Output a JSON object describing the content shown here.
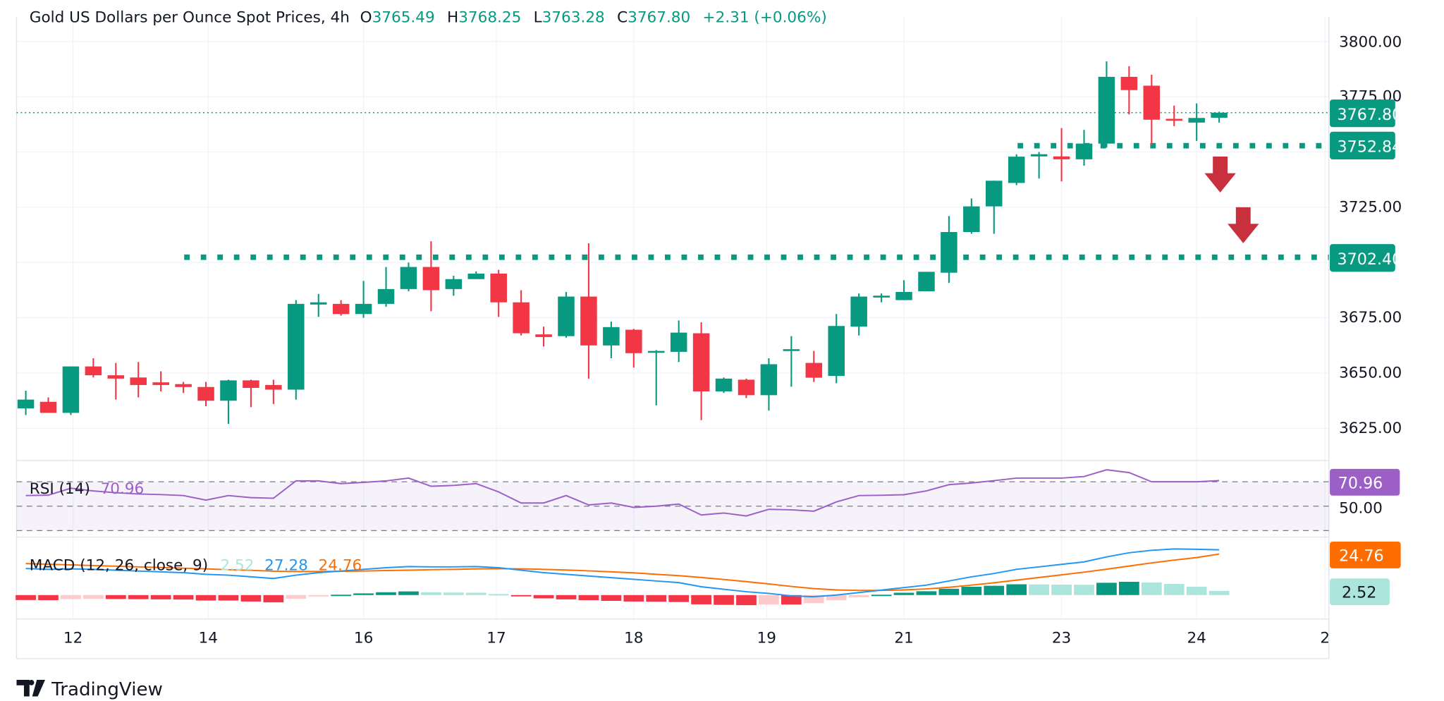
{
  "header": {
    "title": "Gold US Dollars per Ounce Spot Prices, 4h",
    "o_label": "O",
    "o_value": "3765.49",
    "h_label": "H",
    "h_value": "3768.25",
    "l_label": "L",
    "l_value": "3763.28",
    "c_label": "C",
    "c_value": "3767.80",
    "change": "+2.31 (+0.06%)"
  },
  "price_axis": {
    "ticks": [
      "3800.00",
      "3775.00",
      "3725.00",
      "3675.00",
      "3650.00",
      "3625.00"
    ],
    "current_price": "3767.80",
    "level_1": "3752.84",
    "level_2": "3702.40"
  },
  "time_axis": {
    "ticks": [
      "12",
      "14",
      "16",
      "17",
      "18",
      "19",
      "21",
      "23",
      "24",
      "2"
    ]
  },
  "rsi": {
    "label": "RSI (14)",
    "value": "70.96",
    "mid_label": "50.00"
  },
  "macd": {
    "label": "MACD (12, 26, close, 9)",
    "hist_value": "2.52",
    "macd_value": "27.28",
    "signal_value": "24.76"
  },
  "branding": {
    "logo_text": "TradingView"
  },
  "colors": {
    "up": "#089981",
    "down": "#F23645",
    "rsi": "#9C5FC8",
    "macd": "#2196F3",
    "signal": "#FF6D00",
    "arrow": "#C9303D",
    "hist_up_light": "#ACE5DC",
    "hist_down_light": "#FCCBCD"
  },
  "chart_data": {
    "type": "candlestick",
    "title": "Gold US Dollars per Ounce Spot Prices, 4h",
    "ylim": [
      3615,
      3800
    ],
    "grid": true,
    "levels": [
      3752.84,
      3702.4
    ],
    "annotations": [
      "down-arrow",
      "down-arrow"
    ],
    "candles": [
      [
        3634,
        3642,
        3631,
        3638
      ],
      [
        3637,
        3639,
        3632,
        3632
      ],
      [
        3632,
        3653,
        3631,
        3653
      ],
      [
        3653,
        3656.7,
        3648,
        3649
      ],
      [
        3649,
        3654.6,
        3638,
        3647.5
      ],
      [
        3648,
        3655,
        3639,
        3644.6
      ],
      [
        3645.8,
        3650.8,
        3641.7,
        3644.6
      ],
      [
        3645,
        3646,
        3641,
        3643.7
      ],
      [
        3643.7,
        3646,
        3635,
        3637.5
      ],
      [
        3637.5,
        3647,
        3627,
        3646.7
      ],
      [
        3646.7,
        3647,
        3634.6,
        3643.3
      ],
      [
        3644.6,
        3647,
        3636,
        3642.5
      ],
      [
        3642.5,
        3683,
        3638,
        3681.3
      ],
      [
        3681,
        3685.8,
        3675.4,
        3682
      ],
      [
        3681.3,
        3683,
        3676,
        3676.7
      ],
      [
        3676.7,
        3691.7,
        3675,
        3681.3
      ],
      [
        3681.3,
        3698,
        3680,
        3688
      ],
      [
        3688,
        3700,
        3687,
        3698
      ],
      [
        3698,
        3709.6,
        3678,
        3687.5
      ],
      [
        3688,
        3694,
        3685,
        3692.5
      ],
      [
        3692.5,
        3696,
        3693,
        3695
      ],
      [
        3695,
        3696.7,
        3675.4,
        3682
      ],
      [
        3682,
        3687.5,
        3667,
        3668
      ],
      [
        3667.5,
        3671,
        3662,
        3666.3
      ],
      [
        3666.7,
        3686.7,
        3666,
        3684.6
      ],
      [
        3684.6,
        3708.7,
        3647.5,
        3662.5
      ],
      [
        3662.5,
        3673.3,
        3656.7,
        3670.8
      ],
      [
        3669.6,
        3670,
        3652.5,
        3659
      ],
      [
        3659.6,
        3660.4,
        3635.4,
        3660
      ],
      [
        3659.6,
        3673.8,
        3655,
        3668.3
      ],
      [
        3668,
        3673,
        3628.7,
        3641.7
      ],
      [
        3641.7,
        3648,
        3641,
        3647.5
      ],
      [
        3647,
        3647.5,
        3638.7,
        3640
      ],
      [
        3640,
        3656.7,
        3633,
        3654
      ],
      [
        3660.4,
        3666.7,
        3643.8,
        3660.8
      ],
      [
        3654.6,
        3660,
        3646,
        3647.9
      ],
      [
        3648.7,
        3676.7,
        3645.4,
        3671.3
      ],
      [
        3671,
        3686,
        3667,
        3684.6
      ],
      [
        3684.6,
        3686,
        3682,
        3685
      ],
      [
        3683,
        3692,
        3683,
        3686.7
      ],
      [
        3687,
        3695.8,
        3687,
        3695.8
      ],
      [
        3695.4,
        3721,
        3690.8,
        3713.8
      ],
      [
        3713.8,
        3729,
        3713,
        3725.4
      ],
      [
        3725.4,
        3737,
        3713,
        3737
      ],
      [
        3736,
        3749,
        3735,
        3747.9
      ],
      [
        3748,
        3750,
        3738,
        3749
      ],
      [
        3748,
        3760.8,
        3736.7,
        3746.7
      ],
      [
        3746.7,
        3760,
        3743.8,
        3753.8
      ],
      [
        3753.8,
        3791,
        3752,
        3784
      ],
      [
        3784,
        3788.8,
        3767,
        3778
      ],
      [
        3780,
        3785,
        3753,
        3764.6
      ],
      [
        3765,
        3771,
        3761.7,
        3764.6
      ],
      [
        3763.3,
        3772,
        3755,
        3765.4
      ],
      [
        3765.49,
        3768.25,
        3763.28,
        3767.8
      ]
    ],
    "rsi_values": [
      58.7,
      59,
      64.7,
      62.5,
      61,
      60,
      59.5,
      58.7,
      55,
      58.7,
      57,
      56.5,
      70.7,
      70.7,
      68.5,
      69.5,
      70.7,
      73,
      66.3,
      67,
      68.5,
      61.7,
      52.6,
      52.6,
      58.7,
      51,
      52.6,
      49,
      50,
      51.7,
      42.8,
      44.4,
      42,
      47.4,
      47,
      45.9,
      53.5,
      58.7,
      58.9,
      59.4,
      62.5,
      67.6,
      69,
      70.9,
      73,
      73,
      73,
      74.3,
      79.8,
      77.5,
      70,
      70,
      70,
      70.96
    ],
    "rsi_bands": [
      70,
      50,
      30
    ],
    "macd_values": [
      16,
      15.5,
      15.8,
      15.5,
      15,
      14.5,
      14,
      13.5,
      12.5,
      12,
      11,
      10,
      12,
      13.5,
      14.5,
      15.5,
      16.5,
      17.2,
      17,
      17,
      17.2,
      16.5,
      15,
      13.5,
      12.5,
      11.5,
      10.5,
      9.5,
      8.5,
      7.5,
      5,
      3.5,
      2,
      1,
      -0.5,
      -1,
      0,
      1.5,
      3,
      4.5,
      6,
      8.5,
      11,
      13,
      15.5,
      17,
      18.5,
      20,
      23,
      25.5,
      27,
      27.8,
      27.6,
      27.28
    ],
    "signal_values": [
      19,
      18.6,
      18.2,
      17.8,
      17.4,
      17,
      16.6,
      16.2,
      15.8,
      15.3,
      14.9,
      14.4,
      14.2,
      14.2,
      14.3,
      14.5,
      14.8,
      15,
      15.3,
      15.5,
      15.8,
      15.9,
      15.8,
      15.5,
      15.1,
      14.6,
      14,
      13.4,
      12.5,
      11.7,
      10.6,
      9.4,
      8.1,
      6.7,
      5.2,
      3.9,
      3.1,
      2.8,
      2.8,
      3.1,
      3.7,
      4.7,
      6,
      7.4,
      9,
      10.6,
      12.2,
      13.8,
      15.6,
      17.5,
      19.4,
      21.1,
      22.6,
      24.76
    ],
    "histogram_values": [
      -3,
      -3.1,
      -2.4,
      -2.3,
      -2.4,
      -2.5,
      -2.6,
      -2.7,
      -3.3,
      -3.3,
      -3.9,
      -4.4,
      -2.2,
      -0.7,
      0.2,
      1,
      1.7,
      2.2,
      1.7,
      1.5,
      1.4,
      0.6,
      -0.8,
      -2,
      -2.6,
      -3.1,
      -3.5,
      -3.9,
      -4,
      -4.2,
      -5.6,
      -5.9,
      -6.1,
      -5.7,
      -5.7,
      -4.9,
      -3.1,
      -1.3,
      0.2,
      1.4,
      2.3,
      3.8,
      5,
      5.6,
      6.5,
      6.4,
      6.3,
      6.2,
      7.4,
      8,
      7.6,
      6.7,
      5,
      2.52
    ]
  }
}
